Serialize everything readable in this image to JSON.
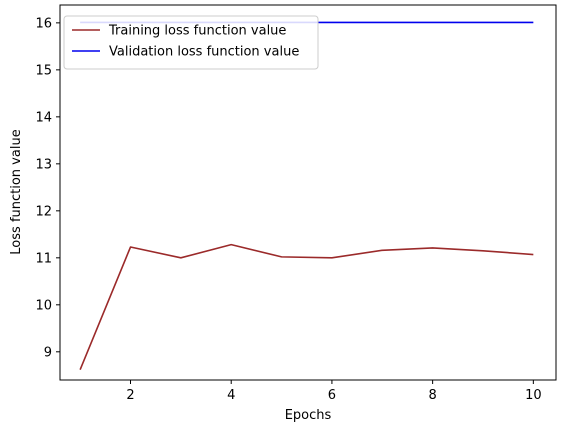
{
  "chart_data": {
    "type": "line",
    "title": "",
    "xlabel": "Epochs",
    "ylabel": "Loss function value",
    "xlim": [
      0.6,
      10.45
    ],
    "ylim": [
      8.4,
      16.38
    ],
    "x_ticks": [
      2,
      4,
      6,
      8,
      10
    ],
    "y_ticks": [
      9,
      10,
      11,
      12,
      13,
      14,
      15,
      16
    ],
    "grid": false,
    "legend": "top-left",
    "x": [
      1,
      2,
      3,
      4,
      5,
      6,
      7,
      8,
      9,
      10
    ],
    "series": [
      {
        "name": "Training loss function value",
        "color": "#9b2a2a",
        "values": [
          8.62,
          11.23,
          11.0,
          11.28,
          11.02,
          11.0,
          11.16,
          11.21,
          11.15,
          11.07
        ]
      },
      {
        "name": "Validation loss function value",
        "color": "#0000ee",
        "values": [
          16.01,
          16.01,
          16.01,
          16.01,
          16.01,
          16.01,
          16.01,
          16.01,
          16.01,
          16.01
        ]
      }
    ]
  }
}
